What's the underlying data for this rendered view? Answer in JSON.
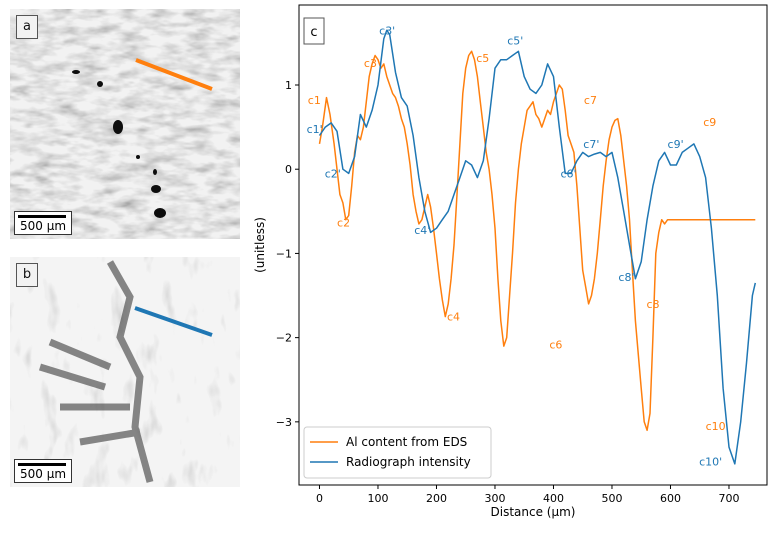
{
  "panels": {
    "a": {
      "tag": "a",
      "scale_label": "500 µm",
      "line_color": "#ff7f0e"
    },
    "b": {
      "tag": "b",
      "scale_label": "500 µm",
      "line_color": "#1f77b4"
    },
    "c": {
      "tag": "c"
    }
  },
  "chart_data": {
    "type": "line",
    "xlabel": "Distance (μm)",
    "ylabel": "(unitless)",
    "xlim": [
      -35,
      765
    ],
    "ylim": [
      -3.75,
      1.95
    ],
    "xticks": [
      0,
      100,
      200,
      300,
      400,
      500,
      600,
      700
    ],
    "yticks": [
      -3,
      -2,
      -1,
      0,
      1
    ],
    "grid": false,
    "legend_position": "lower-left",
    "series": [
      {
        "name": "Al content from EDS",
        "color": "#ff7f0e",
        "x": [
          0,
          5,
          12,
          18,
          25,
          30,
          35,
          40,
          45,
          50,
          55,
          60,
          65,
          70,
          75,
          80,
          85,
          90,
          95,
          100,
          105,
          110,
          115,
          120,
          125,
          130,
          135,
          140,
          145,
          150,
          155,
          160,
          165,
          170,
          175,
          180,
          185,
          190,
          195,
          200,
          205,
          210,
          215,
          220,
          225,
          230,
          235,
          240,
          245,
          250,
          255,
          260,
          265,
          270,
          275,
          280,
          285,
          290,
          295,
          300,
          305,
          310,
          315,
          320,
          325,
          330,
          335,
          340,
          345,
          350,
          355,
          360,
          365,
          370,
          375,
          380,
          385,
          390,
          395,
          400,
          405,
          410,
          415,
          420,
          425,
          430,
          435,
          440,
          445,
          450,
          455,
          460,
          465,
          470,
          475,
          480,
          485,
          490,
          495,
          500,
          505,
          510,
          515,
          520,
          525,
          530,
          535,
          540,
          545,
          550,
          555,
          560,
          565,
          570,
          575,
          580,
          585,
          590,
          595,
          600,
          605,
          610,
          615,
          620,
          625,
          630,
          635,
          640,
          645,
          650,
          655,
          660,
          665,
          670,
          675,
          680,
          685,
          690,
          695,
          700,
          705,
          710,
          715,
          720,
          725,
          730,
          735,
          740,
          745
        ],
        "y": [
          0.3,
          0.5,
          0.85,
          0.65,
          0.3,
          0.0,
          -0.3,
          -0.4,
          -0.6,
          -0.55,
          -0.2,
          0.2,
          0.4,
          0.35,
          0.5,
          0.8,
          1.1,
          1.25,
          1.35,
          1.3,
          1.2,
          1.25,
          1.1,
          1.0,
          0.9,
          0.85,
          0.75,
          0.6,
          0.5,
          0.3,
          0.05,
          -0.3,
          -0.5,
          -0.65,
          -0.6,
          -0.45,
          -0.3,
          -0.45,
          -0.7,
          -1.0,
          -1.3,
          -1.55,
          -1.75,
          -1.6,
          -1.3,
          -0.9,
          -0.3,
          0.3,
          0.9,
          1.2,
          1.35,
          1.4,
          1.3,
          1.1,
          0.8,
          0.5,
          0.2,
          0.0,
          -0.3,
          -0.7,
          -1.3,
          -1.8,
          -2.1,
          -2.0,
          -1.5,
          -1.0,
          -0.4,
          0.0,
          0.3,
          0.5,
          0.7,
          0.75,
          0.8,
          0.65,
          0.6,
          0.5,
          0.6,
          0.7,
          0.65,
          0.8,
          0.9,
          1.0,
          0.95,
          0.7,
          0.4,
          0.3,
          0.2,
          -0.2,
          -0.7,
          -1.2,
          -1.4,
          -1.6,
          -1.5,
          -1.3,
          -1.0,
          -0.6,
          -0.2,
          0.1,
          0.35,
          0.5,
          0.58,
          0.6,
          0.4,
          0.1,
          -0.2,
          -0.6,
          -1.2,
          -1.8,
          -2.2,
          -2.6,
          -3.0,
          -3.1,
          -2.9,
          -2.0,
          -1.0,
          -0.75,
          -0.6,
          -0.65,
          -0.6,
          -0.6,
          -0.6,
          -0.6,
          -0.6,
          -0.6,
          -0.6,
          -0.6,
          -0.6,
          -0.6,
          -0.6,
          -0.6,
          -0.6,
          -0.6,
          -0.6,
          -0.6,
          -0.6,
          -0.6,
          -0.6,
          -0.6,
          -0.6,
          -0.6,
          -0.6,
          -0.6,
          -0.6,
          -0.6,
          -0.6,
          -0.6,
          -0.6,
          -0.6,
          -0.6
        ]
      },
      {
        "name": "Radiograph intensity",
        "color": "#1f77b4",
        "x": [
          0,
          10,
          20,
          30,
          40,
          50,
          60,
          70,
          80,
          90,
          100,
          110,
          115,
          120,
          130,
          140,
          150,
          160,
          170,
          180,
          190,
          200,
          210,
          220,
          230,
          240,
          250,
          260,
          270,
          280,
          290,
          300,
          310,
          320,
          330,
          340,
          350,
          360,
          370,
          380,
          390,
          400,
          410,
          420,
          430,
          440,
          450,
          460,
          470,
          480,
          490,
          500,
          510,
          520,
          530,
          540,
          550,
          560,
          570,
          580,
          590,
          600,
          610,
          620,
          630,
          640,
          650,
          660,
          670,
          680,
          690,
          700,
          710,
          720,
          730,
          740,
          745
        ],
        "y": [
          0.4,
          0.5,
          0.55,
          0.45,
          0.0,
          -0.05,
          0.15,
          0.65,
          0.5,
          0.7,
          1.0,
          1.55,
          1.65,
          1.6,
          1.15,
          0.85,
          0.75,
          0.4,
          -0.1,
          -0.5,
          -0.75,
          -0.7,
          -0.6,
          -0.5,
          -0.3,
          -0.1,
          0.1,
          0.05,
          -0.1,
          0.1,
          0.6,
          1.2,
          1.3,
          1.3,
          1.35,
          1.4,
          1.1,
          0.95,
          0.9,
          1.0,
          1.25,
          1.1,
          0.5,
          -0.05,
          -0.05,
          0.1,
          0.2,
          0.15,
          0.18,
          0.2,
          0.15,
          0.2,
          -0.1,
          -0.5,
          -0.9,
          -1.3,
          -1.1,
          -0.6,
          -0.2,
          0.1,
          0.2,
          0.05,
          0.05,
          0.2,
          0.25,
          0.3,
          0.15,
          -0.1,
          -0.7,
          -1.5,
          -2.6,
          -3.3,
          -3.5,
          -3.0,
          -2.3,
          -1.5,
          -1.35
        ]
      }
    ],
    "annotations": [
      {
        "text": "c1",
        "x": -20,
        "y": 0.82,
        "color": "#ff7f0e"
      },
      {
        "text": "c2",
        "x": 30,
        "y": -0.63,
        "color": "#ff7f0e"
      },
      {
        "text": "c3",
        "x": 76,
        "y": 1.26,
        "color": "#ff7f0e"
      },
      {
        "text": "c4",
        "x": 218,
        "y": -1.75,
        "color": "#ff7f0e"
      },
      {
        "text": "c5",
        "x": 268,
        "y": 1.32,
        "color": "#ff7f0e"
      },
      {
        "text": "c6",
        "x": 393,
        "y": -2.08,
        "color": "#ff7f0e"
      },
      {
        "text": "c7",
        "x": 452,
        "y": 0.82,
        "color": "#ff7f0e"
      },
      {
        "text": "c8",
        "x": 559,
        "y": -1.6,
        "color": "#ff7f0e"
      },
      {
        "text": "c9",
        "x": 656,
        "y": 0.56,
        "color": "#ff7f0e"
      },
      {
        "text": "c10",
        "x": 660,
        "y": -3.05,
        "color": "#ff7f0e"
      },
      {
        "text": "c1'",
        "x": -22,
        "y": 0.48,
        "color": "#1f77b4"
      },
      {
        "text": "c2'",
        "x": 9,
        "y": -0.05,
        "color": "#1f77b4"
      },
      {
        "text": "c3'",
        "x": 102,
        "y": 1.65,
        "color": "#1f77b4"
      },
      {
        "text": "c4'",
        "x": 162,
        "y": -0.72,
        "color": "#1f77b4"
      },
      {
        "text": "c5'",
        "x": 321,
        "y": 1.53,
        "color": "#1f77b4"
      },
      {
        "text": "c6'",
        "x": 412,
        "y": -0.05,
        "color": "#1f77b4"
      },
      {
        "text": "c7'",
        "x": 451,
        "y": 0.3,
        "color": "#1f77b4"
      },
      {
        "text": "c8'",
        "x": 511,
        "y": -1.28,
        "color": "#1f77b4"
      },
      {
        "text": "c9'",
        "x": 595,
        "y": 0.3,
        "color": "#1f77b4"
      },
      {
        "text": "c10'",
        "x": 649,
        "y": -3.47,
        "color": "#1f77b4"
      }
    ]
  }
}
